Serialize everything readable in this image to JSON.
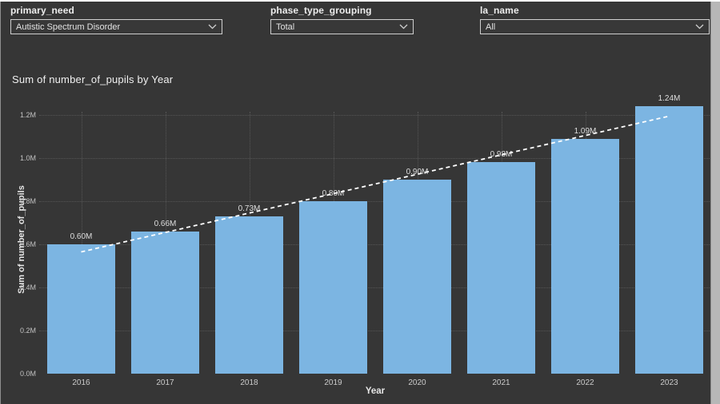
{
  "filters": [
    {
      "label": "primary_need",
      "value": "Autistic Spectrum Disorder"
    },
    {
      "label": "phase_type_grouping",
      "value": "Total"
    },
    {
      "label": "la_name",
      "value": "All"
    }
  ],
  "chart_data": {
    "type": "bar",
    "title": "Sum of number_of_pupils by Year",
    "xlabel": "Year",
    "ylabel": "Sum of number_of_pupils",
    "categories": [
      "2016",
      "2017",
      "2018",
      "2019",
      "2020",
      "2021",
      "2022",
      "2023"
    ],
    "values": [
      0.6,
      0.66,
      0.73,
      0.8,
      0.9,
      0.98,
      1.09,
      1.24
    ],
    "value_labels": [
      "0.60M",
      "0.66M",
      "0.73M",
      "0.80M",
      "0.90M",
      "0.98M",
      "1.09M",
      "1.24M"
    ],
    "y_ticks": [
      {
        "value": 0.0,
        "label": "0.0M"
      },
      {
        "value": 0.2,
        "label": "0.2M"
      },
      {
        "value": 0.4,
        "label": "0.4M"
      },
      {
        "value": 0.6,
        "label": "0.6M"
      },
      {
        "value": 0.8,
        "label": "0.8M"
      },
      {
        "value": 1.0,
        "label": "1.0M"
      },
      {
        "value": 1.2,
        "label": "1.2M"
      }
    ],
    "ylim": [
      0,
      1.215
    ],
    "grid": true,
    "legend": "none",
    "bar_color": "#7cb5e2",
    "trendline": {
      "start_value": 0.565,
      "end_value": 1.195,
      "style": "dashed",
      "color": "#ffffff"
    }
  }
}
